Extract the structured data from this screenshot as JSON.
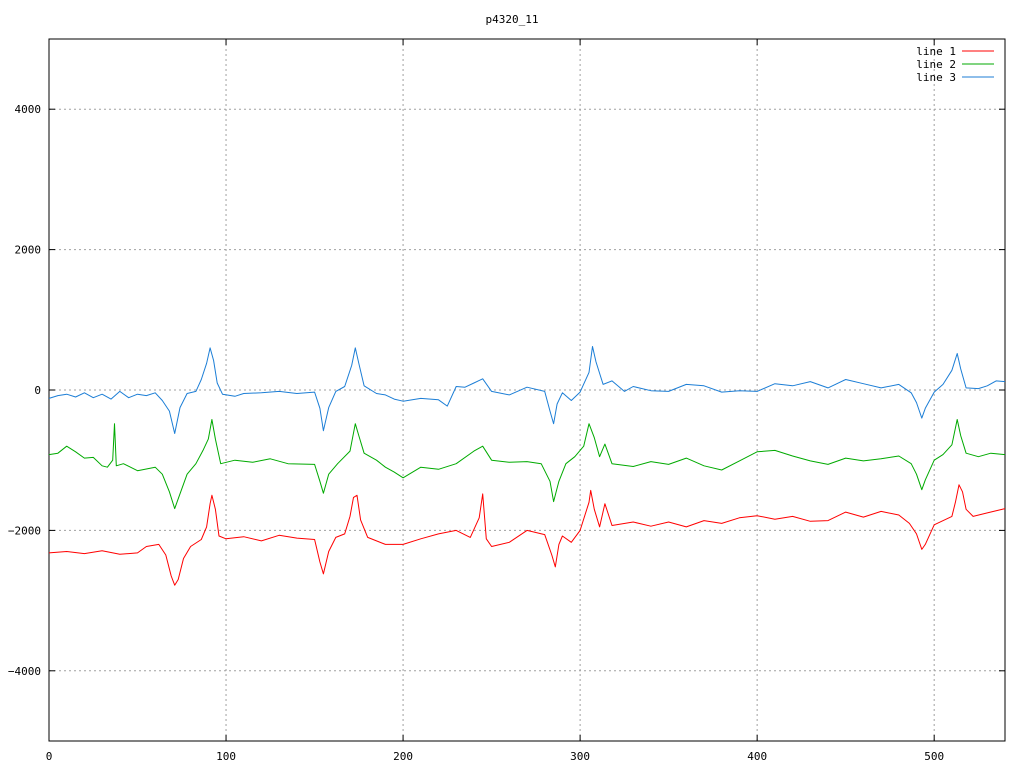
{
  "chart_data": {
    "type": "line",
    "title": "p4320_11",
    "xlabel": "",
    "ylabel": "",
    "xlim": [
      0,
      540
    ],
    "ylim": [
      -5000,
      5000
    ],
    "xticks": [
      0,
      100,
      200,
      300,
      400,
      500
    ],
    "yticks": [
      -4000,
      -2000,
      0,
      2000,
      4000
    ],
    "ytick_labels": [
      "−4000",
      "−2000",
      "0",
      "2000",
      "4000"
    ],
    "grid": true,
    "legend_position": "top-right",
    "series": [
      {
        "name": "line 1",
        "color": "#ff0000",
        "points": [
          [
            0,
            -2320
          ],
          [
            10,
            -2300
          ],
          [
            20,
            -2330
          ],
          [
            30,
            -2290
          ],
          [
            40,
            -2340
          ],
          [
            50,
            -2320
          ],
          [
            55,
            -2230
          ],
          [
            62,
            -2200
          ],
          [
            66,
            -2350
          ],
          [
            69,
            -2650
          ],
          [
            71,
            -2780
          ],
          [
            73,
            -2700
          ],
          [
            76,
            -2400
          ],
          [
            80,
            -2230
          ],
          [
            86,
            -2130
          ],
          [
            89,
            -1950
          ],
          [
            91,
            -1620
          ],
          [
            92,
            -1500
          ],
          [
            94,
            -1700
          ],
          [
            96,
            -2080
          ],
          [
            100,
            -2120
          ],
          [
            110,
            -2090
          ],
          [
            120,
            -2150
          ],
          [
            130,
            -2070
          ],
          [
            140,
            -2110
          ],
          [
            150,
            -2130
          ],
          [
            153,
            -2450
          ],
          [
            155,
            -2620
          ],
          [
            158,
            -2300
          ],
          [
            162,
            -2100
          ],
          [
            167,
            -2050
          ],
          [
            170,
            -1800
          ],
          [
            172,
            -1530
          ],
          [
            174,
            -1500
          ],
          [
            176,
            -1850
          ],
          [
            180,
            -2100
          ],
          [
            190,
            -2200
          ],
          [
            200,
            -2200
          ],
          [
            210,
            -2120
          ],
          [
            220,
            -2050
          ],
          [
            230,
            -2000
          ],
          [
            238,
            -2100
          ],
          [
            243,
            -1820
          ],
          [
            245,
            -1480
          ],
          [
            247,
            -2120
          ],
          [
            250,
            -2230
          ],
          [
            260,
            -2170
          ],
          [
            270,
            -2000
          ],
          [
            280,
            -2060
          ],
          [
            284,
            -2350
          ],
          [
            286,
            -2520
          ],
          [
            288,
            -2200
          ],
          [
            290,
            -2080
          ],
          [
            295,
            -2170
          ],
          [
            300,
            -2000
          ],
          [
            305,
            -1600
          ],
          [
            306,
            -1430
          ],
          [
            308,
            -1700
          ],
          [
            311,
            -1950
          ],
          [
            314,
            -1620
          ],
          [
            318,
            -1930
          ],
          [
            330,
            -1880
          ],
          [
            340,
            -1940
          ],
          [
            350,
            -1880
          ],
          [
            360,
            -1950
          ],
          [
            370,
            -1860
          ],
          [
            380,
            -1900
          ],
          [
            390,
            -1820
          ],
          [
            400,
            -1790
          ],
          [
            410,
            -1840
          ],
          [
            420,
            -1800
          ],
          [
            430,
            -1870
          ],
          [
            440,
            -1860
          ],
          [
            450,
            -1740
          ],
          [
            460,
            -1810
          ],
          [
            470,
            -1730
          ],
          [
            480,
            -1780
          ],
          [
            486,
            -1900
          ],
          [
            490,
            -2050
          ],
          [
            493,
            -2270
          ],
          [
            495,
            -2200
          ],
          [
            500,
            -1920
          ],
          [
            510,
            -1800
          ],
          [
            512,
            -1600
          ],
          [
            514,
            -1350
          ],
          [
            516,
            -1450
          ],
          [
            518,
            -1700
          ],
          [
            522,
            -1800
          ],
          [
            530,
            -1750
          ],
          [
            540,
            -1690
          ]
        ]
      },
      {
        "name": "line 2",
        "color": "#00aa00",
        "points": [
          [
            0,
            -920
          ],
          [
            5,
            -900
          ],
          [
            10,
            -800
          ],
          [
            15,
            -880
          ],
          [
            20,
            -970
          ],
          [
            25,
            -960
          ],
          [
            30,
            -1080
          ],
          [
            33,
            -1100
          ],
          [
            36,
            -1000
          ],
          [
            37,
            -480
          ],
          [
            38,
            -1080
          ],
          [
            42,
            -1050
          ],
          [
            50,
            -1150
          ],
          [
            60,
            -1100
          ],
          [
            64,
            -1200
          ],
          [
            68,
            -1450
          ],
          [
            71,
            -1690
          ],
          [
            73,
            -1550
          ],
          [
            78,
            -1200
          ],
          [
            83,
            -1050
          ],
          [
            87,
            -860
          ],
          [
            90,
            -700
          ],
          [
            92,
            -420
          ],
          [
            94,
            -700
          ],
          [
            97,
            -1050
          ],
          [
            105,
            -1000
          ],
          [
            115,
            -1030
          ],
          [
            125,
            -980
          ],
          [
            135,
            -1050
          ],
          [
            150,
            -1060
          ],
          [
            153,
            -1300
          ],
          [
            155,
            -1470
          ],
          [
            158,
            -1200
          ],
          [
            163,
            -1050
          ],
          [
            170,
            -870
          ],
          [
            173,
            -480
          ],
          [
            175,
            -650
          ],
          [
            178,
            -900
          ],
          [
            185,
            -1000
          ],
          [
            190,
            -1100
          ],
          [
            195,
            -1170
          ],
          [
            200,
            -1250
          ],
          [
            210,
            -1100
          ],
          [
            220,
            -1130
          ],
          [
            230,
            -1050
          ],
          [
            240,
            -870
          ],
          [
            245,
            -800
          ],
          [
            250,
            -1000
          ],
          [
            260,
            -1030
          ],
          [
            270,
            -1020
          ],
          [
            278,
            -1050
          ],
          [
            283,
            -1300
          ],
          [
            285,
            -1590
          ],
          [
            288,
            -1300
          ],
          [
            292,
            -1050
          ],
          [
            297,
            -950
          ],
          [
            302,
            -800
          ],
          [
            305,
            -480
          ],
          [
            308,
            -680
          ],
          [
            311,
            -950
          ],
          [
            314,
            -770
          ],
          [
            318,
            -1050
          ],
          [
            330,
            -1090
          ],
          [
            340,
            -1020
          ],
          [
            350,
            -1060
          ],
          [
            360,
            -970
          ],
          [
            370,
            -1080
          ],
          [
            380,
            -1140
          ],
          [
            390,
            -1010
          ],
          [
            400,
            -880
          ],
          [
            410,
            -860
          ],
          [
            420,
            -940
          ],
          [
            430,
            -1010
          ],
          [
            440,
            -1060
          ],
          [
            450,
            -970
          ],
          [
            460,
            -1010
          ],
          [
            470,
            -980
          ],
          [
            480,
            -940
          ],
          [
            487,
            -1050
          ],
          [
            490,
            -1200
          ],
          [
            493,
            -1420
          ],
          [
            495,
            -1280
          ],
          [
            500,
            -1000
          ],
          [
            505,
            -920
          ],
          [
            510,
            -780
          ],
          [
            513,
            -420
          ],
          [
            515,
            -650
          ],
          [
            518,
            -900
          ],
          [
            525,
            -950
          ],
          [
            532,
            -900
          ],
          [
            540,
            -920
          ]
        ]
      },
      {
        "name": "line 3",
        "color": "#1c7ed6",
        "points": [
          [
            0,
            -120
          ],
          [
            5,
            -80
          ],
          [
            10,
            -60
          ],
          [
            15,
            -100
          ],
          [
            20,
            -40
          ],
          [
            25,
            -110
          ],
          [
            30,
            -60
          ],
          [
            35,
            -130
          ],
          [
            40,
            -20
          ],
          [
            45,
            -110
          ],
          [
            50,
            -60
          ],
          [
            55,
            -80
          ],
          [
            60,
            -40
          ],
          [
            64,
            -150
          ],
          [
            68,
            -300
          ],
          [
            71,
            -620
          ],
          [
            74,
            -250
          ],
          [
            78,
            -50
          ],
          [
            83,
            -20
          ],
          [
            86,
            150
          ],
          [
            89,
            380
          ],
          [
            91,
            600
          ],
          [
            93,
            420
          ],
          [
            95,
            100
          ],
          [
            98,
            -60
          ],
          [
            105,
            -90
          ],
          [
            110,
            -50
          ],
          [
            120,
            -40
          ],
          [
            130,
            -20
          ],
          [
            140,
            -50
          ],
          [
            150,
            -30
          ],
          [
            153,
            -260
          ],
          [
            155,
            -580
          ],
          [
            158,
            -250
          ],
          [
            162,
            -20
          ],
          [
            167,
            50
          ],
          [
            171,
            350
          ],
          [
            173,
            600
          ],
          [
            175,
            380
          ],
          [
            178,
            60
          ],
          [
            185,
            -50
          ],
          [
            190,
            -70
          ],
          [
            195,
            -130
          ],
          [
            200,
            -160
          ],
          [
            210,
            -120
          ],
          [
            220,
            -140
          ],
          [
            225,
            -230
          ],
          [
            230,
            50
          ],
          [
            235,
            40
          ],
          [
            240,
            100
          ],
          [
            245,
            160
          ],
          [
            250,
            -20
          ],
          [
            260,
            -70
          ],
          [
            270,
            40
          ],
          [
            280,
            -20
          ],
          [
            283,
            -300
          ],
          [
            285,
            -480
          ],
          [
            287,
            -200
          ],
          [
            290,
            -40
          ],
          [
            295,
            -150
          ],
          [
            300,
            -30
          ],
          [
            305,
            250
          ],
          [
            307,
            620
          ],
          [
            309,
            400
          ],
          [
            313,
            80
          ],
          [
            318,
            130
          ],
          [
            325,
            -20
          ],
          [
            330,
            50
          ],
          [
            340,
            -10
          ],
          [
            350,
            -20
          ],
          [
            360,
            80
          ],
          [
            370,
            60
          ],
          [
            380,
            -30
          ],
          [
            390,
            -10
          ],
          [
            400,
            -20
          ],
          [
            410,
            90
          ],
          [
            420,
            60
          ],
          [
            430,
            120
          ],
          [
            440,
            30
          ],
          [
            450,
            150
          ],
          [
            460,
            90
          ],
          [
            470,
            30
          ],
          [
            480,
            80
          ],
          [
            487,
            -40
          ],
          [
            490,
            -180
          ],
          [
            493,
            -400
          ],
          [
            495,
            -260
          ],
          [
            500,
            -30
          ],
          [
            505,
            80
          ],
          [
            510,
            280
          ],
          [
            513,
            520
          ],
          [
            515,
            300
          ],
          [
            518,
            30
          ],
          [
            525,
            20
          ],
          [
            530,
            60
          ],
          [
            535,
            130
          ],
          [
            540,
            120
          ]
        ]
      }
    ]
  }
}
